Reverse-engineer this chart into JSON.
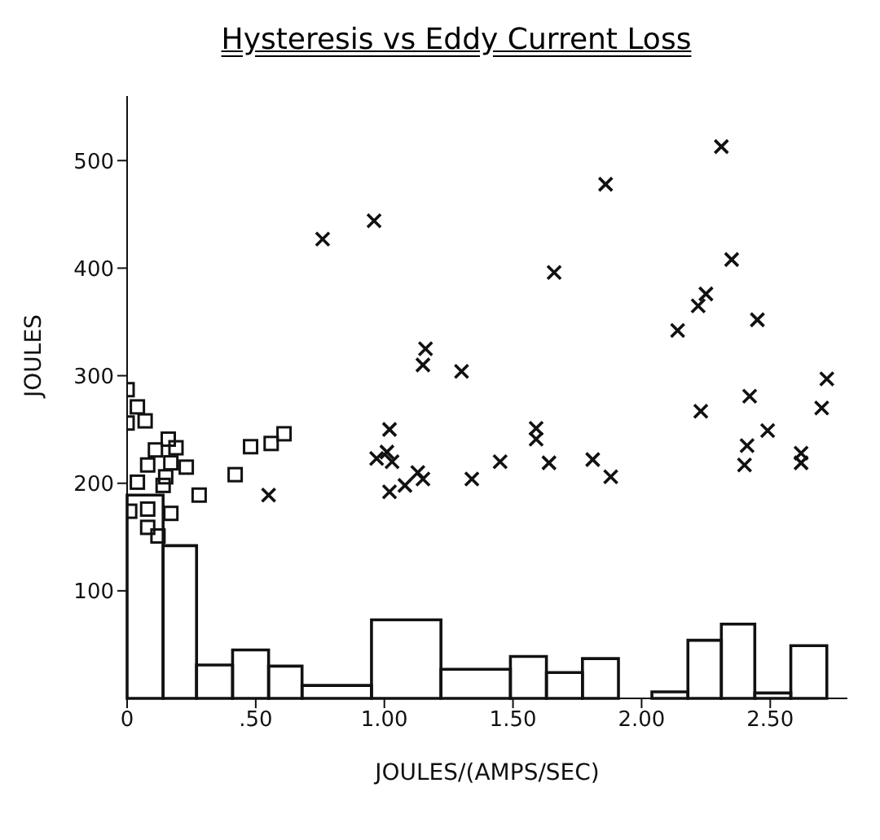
{
  "chart_data": {
    "type": "scatter",
    "title": "Hysteresis vs Eddy Current Loss",
    "xlabel": "JOULES/(AMPS/SEC)",
    "ylabel": "JOULES",
    "xlim": [
      0,
      2.8
    ],
    "ylim": [
      0,
      560
    ],
    "xticks": [
      0,
      {
        "value": 0.5,
        "label": ".50"
      },
      {
        "value": 1,
        "label": "1.00"
      },
      {
        "value": 1.5,
        "label": "1.50"
      },
      {
        "value": 2,
        "label": "2.00"
      },
      {
        "value": 2.5,
        "label": "2.50"
      }
    ],
    "yticks": [
      100,
      200,
      300,
      400,
      500
    ],
    "grid": false,
    "series": [
      {
        "marker": "square",
        "color": "#111111",
        "x": [
          0.0,
          0.04,
          0.07,
          0.0,
          0.16,
          0.19,
          0.11,
          0.17,
          0.23,
          0.08,
          0.15,
          0.14,
          0.04,
          0.01,
          0.08,
          0.17,
          0.08,
          0.12,
          0.42,
          0.48,
          0.56,
          0.61,
          0.28
        ],
        "values": [
          287,
          271,
          258,
          256,
          241,
          233,
          231,
          219,
          215,
          217,
          206,
          198,
          201,
          174,
          176,
          172,
          159,
          151,
          208,
          234,
          237,
          246,
          189
        ]
      },
      {
        "marker": "cross",
        "color": "#111111",
        "x": [
          0.76,
          0.96,
          0.55,
          0.97,
          1.01,
          1.03,
          1.02,
          1.02,
          1.08,
          1.13,
          1.15,
          1.16,
          1.15,
          2.31,
          1.86,
          1.66,
          2.35,
          2.25,
          2.22,
          2.14,
          2.45,
          1.3,
          2.72,
          2.7,
          2.42,
          2.23,
          2.49,
          1.59,
          1.59,
          2.41,
          2.4,
          2.62,
          2.62,
          1.45,
          1.64,
          1.81,
          1.88,
          1.34
        ],
        "values": [
          427,
          444,
          189,
          223,
          229,
          220,
          250,
          192,
          198,
          210,
          204,
          325,
          310,
          513,
          478,
          396,
          408,
          376,
          365,
          342,
          352,
          304,
          297,
          270,
          281,
          267,
          249,
          251,
          241,
          235,
          217,
          228,
          219,
          220,
          219,
          222,
          206,
          204
        ]
      },
      {
        "type": "histogram",
        "color": "#111111",
        "bins": [
          0,
          0.14,
          0.27,
          0.41,
          0.55,
          0.68,
          0.95,
          1.22,
          1.49,
          1.63,
          1.77,
          1.91,
          2.04,
          2.18,
          2.31,
          2.44,
          2.58,
          2.72
        ],
        "values": [
          189,
          142,
          31,
          45,
          30,
          12,
          73,
          27,
          39,
          24,
          37,
          0,
          6,
          54,
          69,
          5,
          49
        ]
      }
    ]
  }
}
